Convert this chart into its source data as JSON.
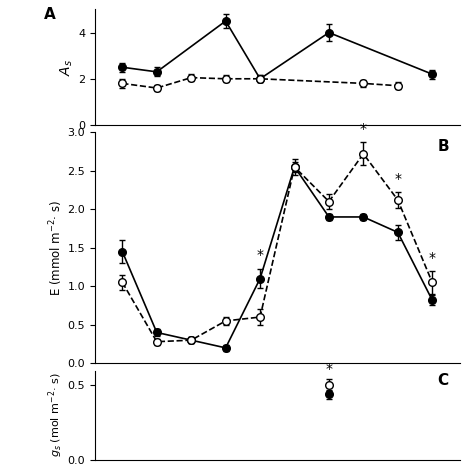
{
  "panel_A": {
    "label": "A",
    "ylim": [
      0,
      5
    ],
    "yticks": [
      0,
      2,
      4
    ],
    "filled_x": [
      1,
      2,
      4,
      5,
      7,
      10
    ],
    "filled_y": [
      2.5,
      2.3,
      4.5,
      2.0,
      4.0,
      2.2
    ],
    "filled_yerr": [
      0.2,
      0.2,
      0.3,
      0.15,
      0.35,
      0.2
    ],
    "open_x": [
      1,
      2,
      3,
      4,
      5,
      8,
      9
    ],
    "open_y": [
      1.8,
      1.6,
      2.05,
      2.0,
      2.0,
      1.8,
      1.7
    ],
    "open_yerr": [
      0.18,
      0.15,
      0.15,
      0.15,
      0.15,
      0.15,
      0.15
    ]
  },
  "panel_B": {
    "label": "B",
    "ylim": [
      0.0,
      3.0
    ],
    "yticks": [
      0.0,
      0.5,
      1.0,
      1.5,
      2.0,
      2.5,
      3.0
    ],
    "filled_x": [
      1,
      2,
      3,
      4,
      5,
      6,
      7,
      8,
      9,
      10
    ],
    "filled_y": [
      1.45,
      0.4,
      0.3,
      0.2,
      1.1,
      2.55,
      1.9,
      1.9,
      1.7,
      0.82
    ],
    "filled_yerr": [
      0.15,
      0.05,
      0.04,
      0.04,
      0.12,
      0.1,
      0.04,
      0.04,
      0.1,
      0.06
    ],
    "open_x": [
      1,
      2,
      3,
      4,
      5,
      6,
      7,
      8,
      9,
      10
    ],
    "open_y": [
      1.05,
      0.28,
      0.3,
      0.55,
      0.6,
      2.55,
      2.1,
      2.72,
      2.12,
      1.05
    ],
    "open_yerr": [
      0.1,
      0.04,
      0.04,
      0.05,
      0.1,
      0.06,
      0.1,
      0.15,
      0.1,
      0.15
    ],
    "sig_filled_idx": [
      4
    ],
    "sig_open_idx": [
      7,
      8,
      9
    ]
  },
  "panel_C": {
    "label": "C",
    "ylim": [
      0.0,
      0.6
    ],
    "yticks": [
      0.0,
      0.5
    ],
    "open_x": [
      7
    ],
    "open_y": [
      0.5
    ],
    "open_yerr": [
      0.04
    ],
    "filled_x": [
      7
    ],
    "filled_y": [
      0.44
    ],
    "filled_yerr": [
      0.03
    ],
    "sig_open_idx": [
      0
    ]
  },
  "xlim": [
    0.2,
    10.8
  ],
  "background_color": "#ffffff"
}
